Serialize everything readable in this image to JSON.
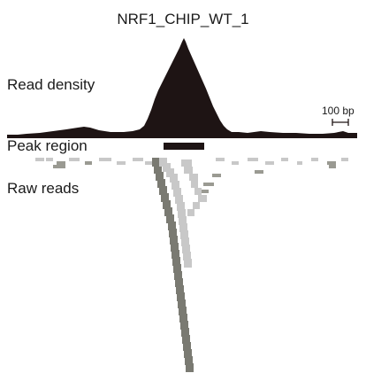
{
  "title": "NRF1_CHIP_WT_1",
  "labels": {
    "density": "Read density",
    "peak": "Peak region",
    "raw": "Raw reads"
  },
  "scale_bar": "100 bp",
  "colors": {
    "density_fill": "#1e1414",
    "peak_bar": "#1e1414",
    "read_light": "#c8c8c8",
    "read_dark": "#7a7a72",
    "read_mid": "#9a9a92"
  }
}
